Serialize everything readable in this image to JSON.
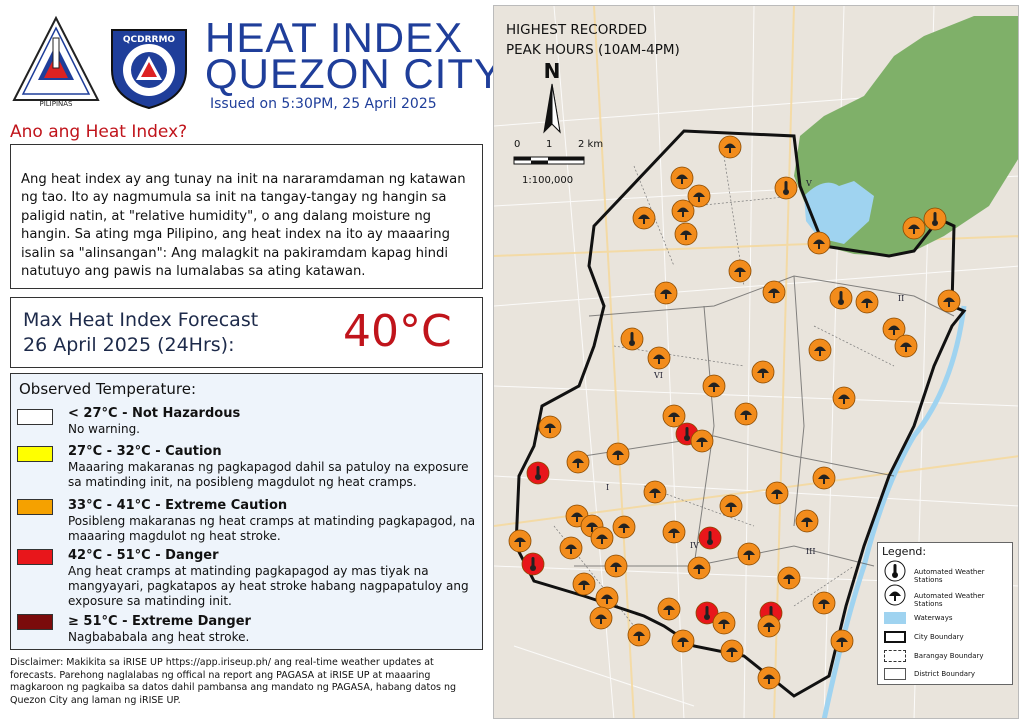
{
  "header": {
    "title_line1": "HEAT INDEX",
    "title_line2": "QUEZON CITY",
    "issued": "Issued on 5:30PM, 25 April 2025",
    "logo1_text_top": "LUNGSOD QUEZON",
    "logo1_text_bottom": "PILIPINAS",
    "logo2_text": "QCDRRMO"
  },
  "about": {
    "heading": "Ano ang Heat Index?",
    "body": "Ang heat index ay ang tunay na init na nararamdaman ng katawan ng tao. Ito ay nagmumula sa init na tangay-tangay ng hangin sa paligid natin, at \"relative humidity\", o ang dalang moisture ng hangin. Sa ating mga Pilipino, ang heat index na ito ay maaaring isalin sa \"alinsangan\": Ang malagkit na pakiramdam kapag hindi natutuyo ang pawis na lumalabas sa ating katawan."
  },
  "forecast": {
    "label_line1": "Max Heat Index Forecast",
    "label_line2": "26 April 2025 (24Hrs):",
    "value": "40°C"
  },
  "observed": {
    "title": "Observed Temperature:",
    "levels": [
      {
        "range": "< 27°C - Not Hazardous",
        "desc": "No warning.",
        "color": "#ffffff"
      },
      {
        "range": "27°C - 32°C - Caution",
        "desc": "Maaaring makaranas ng pagkapagod dahil sa patuloy na exposure sa matinding init, na posibleng magdulot ng heat cramps.",
        "color": "#ffff00"
      },
      {
        "range": "33°C - 41°C - Extreme Caution",
        "desc": "Posibleng makaranas ng heat cramps at matinding pagkapagod, na maaaring magdulot ng heat stroke.",
        "color": "#f5a100"
      },
      {
        "range": "42°C - 51°C - Danger",
        "desc": "Ang heat cramps at matinding pagkapagod ay mas tiyak na mangyayari, pagkatapos ay heat stroke habang nagpapatuloy ang exposure sa matinding init.",
        "color": "#e8161b"
      },
      {
        "range": "≥ 51°C - Extreme Danger",
        "desc": "Nagbababala ang heat stroke.",
        "color": "#7b0b0b"
      }
    ]
  },
  "disclaimer": "Disclaimer: Makikita sa iRISE UP https://app.iriseup.ph/ ang real-time weather updates at forecasts. Parehong naglalabas ng offical na report ang PAGASA at iRISE UP at maaaring magkaroon ng pagkaiba sa datos dahil pambansa ang mandato ng PAGASA, habang datos ng Quezon City ang laman ng iRISE UP.",
  "map": {
    "title_line1": "HIGHEST RECORDED",
    "title_line2": "PEAK HOURS (10AM-4PM)",
    "north": "N",
    "scale_0": "0",
    "scale_1": "1",
    "scale_2": "2 km",
    "scale_ratio": "1:100,000",
    "districts": [
      "I",
      "II",
      "III",
      "IV",
      "V",
      "VI"
    ],
    "stations_extreme_caution_count": 64,
    "stations_danger_count": 6
  },
  "legend": {
    "title": "Legend:",
    "items": [
      "Automated Weather Stations",
      "Automated Weather Stations",
      "Waterways",
      "City Boundary",
      "Barangay Boundary",
      "District Boundary"
    ]
  },
  "colors": {
    "title_blue": "#1f3e9a",
    "accent_red": "#c0141b",
    "station_orange": "#f28c1c",
    "station_red": "#e8161b",
    "water": "#9fd3f0",
    "park": "#7fb069"
  }
}
